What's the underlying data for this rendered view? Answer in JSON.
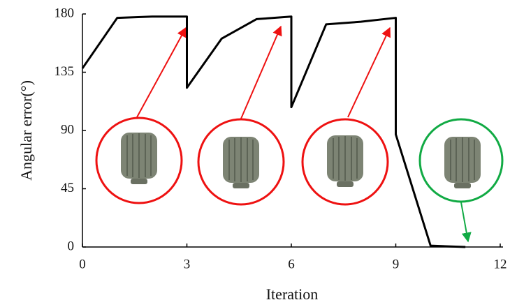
{
  "chart_data": {
    "type": "line",
    "x": [
      0,
      1,
      2,
      3,
      3,
      4,
      5,
      6,
      6,
      7,
      8,
      9,
      9,
      10,
      11
    ],
    "values": [
      138,
      177,
      178,
      178,
      123,
      161,
      176,
      178,
      108,
      172,
      174,
      177,
      87,
      1,
      0
    ],
    "color": "#000000",
    "xlabel": "Iteration",
    "ylabel": "Angular error(°)",
    "xlim": [
      0,
      12
    ],
    "xticks": [
      0,
      3,
      6,
      9,
      12
    ],
    "ylim": [
      0,
      180
    ],
    "yticks": [
      0,
      45,
      90,
      135,
      180
    ]
  }
}
